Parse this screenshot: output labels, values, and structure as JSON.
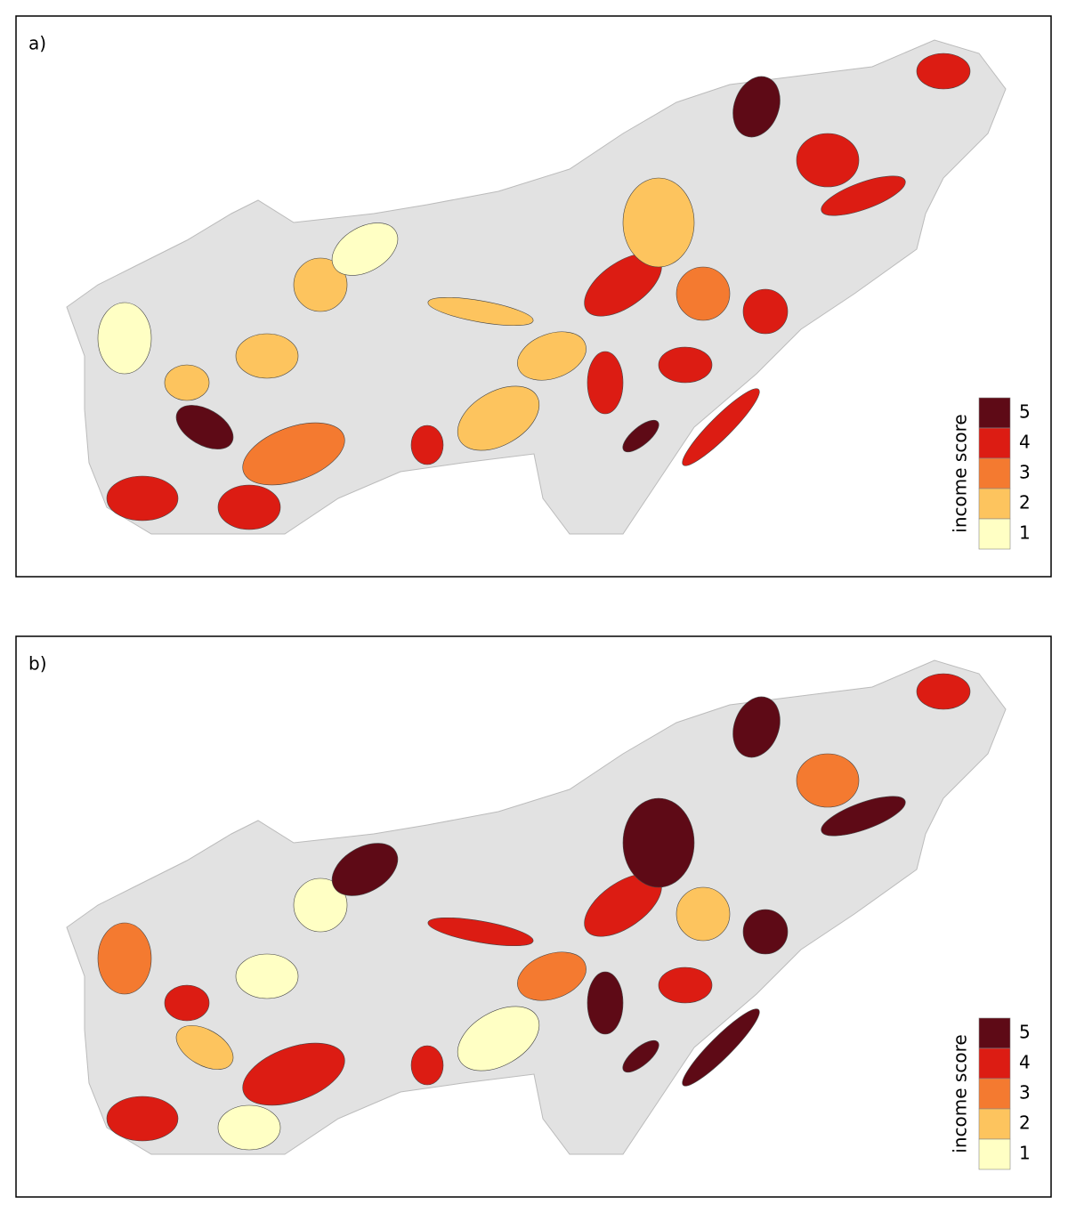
{
  "legend": {
    "title": "income score",
    "items": [
      {
        "label": 5,
        "color": "#5e0a16"
      },
      {
        "label": 4,
        "color": "#dc1c13"
      },
      {
        "label": 3,
        "color": "#f47a30"
      },
      {
        "label": 2,
        "color": "#fdc45e"
      },
      {
        "label": 1,
        "color": "#ffffc4"
      }
    ]
  },
  "panels": [
    {
      "label": "a)",
      "regions": [
        5,
        4,
        4,
        3,
        1,
        2,
        2,
        2,
        1,
        4,
        2,
        2,
        4,
        4,
        2,
        3,
        4,
        4,
        4,
        5,
        4,
        4,
        4,
        5,
        2
      ]
    },
    {
      "label": "b)",
      "regions": [
        2,
        4,
        1,
        4,
        3,
        4,
        1,
        1,
        5,
        4,
        1,
        3,
        4,
        5,
        5,
        2,
        4,
        5,
        5,
        5,
        3,
        5,
        4,
        5,
        4
      ]
    }
  ]
}
